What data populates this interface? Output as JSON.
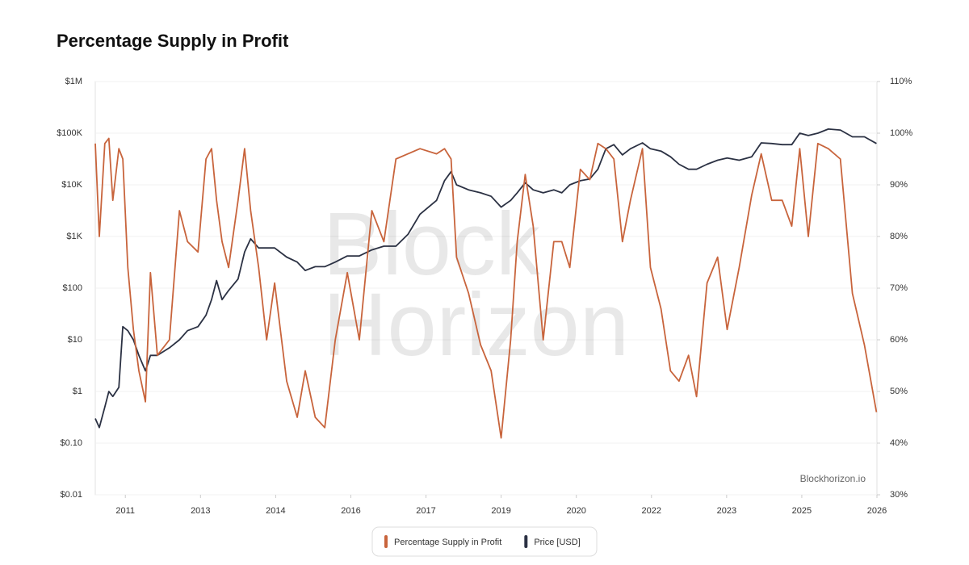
{
  "chart_data": {
    "type": "line",
    "title": "Percentage Supply in Profit",
    "watermark": [
      "Block",
      "Horizon"
    ],
    "credit": "Blockhorizon.io",
    "x": [
      2010.4,
      2010.48,
      2010.59,
      2010.67,
      2010.75,
      2010.87,
      2010.95,
      2011.05,
      2011.16,
      2011.27,
      2011.4,
      2011.5,
      2011.64,
      2011.88,
      2012.08,
      2012.24,
      2012.45,
      2012.61,
      2012.72,
      2012.82,
      2012.93,
      2013.06,
      2013.25,
      2013.38,
      2013.5,
      2013.66,
      2013.82,
      2013.98,
      2014.22,
      2014.43,
      2014.59,
      2014.79,
      2014.98,
      2015.19,
      2015.43,
      2015.67,
      2015.92,
      2016.16,
      2016.4,
      2016.64,
      2016.88,
      2017.21,
      2017.37,
      2017.5,
      2017.61,
      2017.85,
      2018.09,
      2018.3,
      2018.5,
      2018.69,
      2018.82,
      2018.98,
      2019.14,
      2019.34,
      2019.55,
      2019.71,
      2019.87,
      2020.08,
      2020.27,
      2020.43,
      2020.59,
      2020.75,
      2020.92,
      2021.08,
      2021.32,
      2021.48,
      2021.69,
      2021.88,
      2022.05,
      2022.24,
      2022.4,
      2022.61,
      2022.82,
      2023.01,
      2023.25,
      2023.5,
      2023.69,
      2023.9,
      2024.11,
      2024.3,
      2024.46,
      2024.63,
      2024.82,
      2025.03,
      2025.27,
      2025.51,
      2025.75,
      2025.99
    ],
    "series": [
      {
        "name": "Percentage Supply in Profit",
        "color": "#c8643c",
        "axis": "y2",
        "values": [
          98,
          80,
          98,
          99,
          87,
          97,
          95,
          74,
          62,
          54,
          48,
          73,
          57,
          60,
          85,
          79,
          77,
          95,
          97,
          87,
          79,
          74,
          87,
          97,
          85,
          74,
          60,
          71,
          52,
          45,
          54,
          45,
          43,
          60,
          73,
          60,
          85,
          79,
          95,
          96,
          97,
          96,
          97,
          95,
          76,
          69,
          59,
          54,
          41,
          60,
          79,
          92,
          82,
          60,
          79,
          79,
          74,
          93,
          91,
          98,
          97,
          95,
          79,
          87,
          97,
          74,
          66,
          54,
          52,
          57,
          49,
          71,
          76,
          62,
          74,
          88,
          96,
          87,
          87,
          82,
          97,
          80,
          98,
          97,
          95,
          69,
          59,
          46
        ]
      },
      {
        "name": "Price [USD]",
        "color": "#2b3143",
        "axis": "y",
        "values": [
          0.3,
          0.2,
          0.5,
          1,
          0.8,
          1.2,
          18,
          15,
          10,
          5,
          2.5,
          5,
          5,
          7,
          10,
          15,
          18,
          30,
          60,
          140,
          60,
          90,
          150,
          500,
          900,
          600,
          600,
          600,
          400,
          320,
          220,
          260,
          260,
          320,
          420,
          420,
          550,
          650,
          650,
          1100,
          2700,
          5000,
          12000,
          18000,
          10000,
          8000,
          7000,
          6000,
          3700,
          5000,
          7000,
          11000,
          8000,
          7000,
          8000,
          7000,
          10000,
          12000,
          13000,
          20000,
          50000,
          60000,
          38000,
          50000,
          65000,
          50000,
          45000,
          35000,
          25000,
          20000,
          20000,
          25000,
          30000,
          33000,
          30000,
          35000,
          65000,
          63000,
          60000,
          60000,
          100000,
          90000,
          100000,
          120000,
          115000,
          85000,
          85000,
          63000
        ]
      }
    ],
    "xlim": [
      2010.4,
      2026
    ],
    "xticks": [
      2011,
      {
        "value": 2012.5,
        "label": "2013"
      },
      2014,
      {
        "value": 2015.5,
        "label": "2016"
      },
      2017,
      {
        "value": 2018.5,
        "label": "2019"
      },
      2020,
      {
        "value": 2021.5,
        "label": "2022"
      },
      2023,
      {
        "value": 2024.5,
        "label": "2025"
      },
      2026
    ],
    "ylim": [
      0.01,
      1000000
    ],
    "log_y": true,
    "yticks": [
      {
        "value": 0.01,
        "label": "$0.01"
      },
      {
        "value": 0.1,
        "label": "$0.10"
      },
      {
        "value": 1,
        "label": "$1"
      },
      {
        "value": 10,
        "label": "$10"
      },
      {
        "value": 100,
        "label": "$100"
      },
      {
        "value": 1000,
        "label": "$1K"
      },
      {
        "value": 10000,
        "label": "$10K"
      },
      {
        "value": 100000,
        "label": "$100K"
      },
      {
        "value": 1000000,
        "label": "$1M"
      }
    ],
    "y2lim": [
      30,
      110
    ],
    "y2ticks": [
      {
        "value": 30,
        "label": "30%"
      },
      {
        "value": 40,
        "label": "40%"
      },
      {
        "value": 50,
        "label": "50%"
      },
      {
        "value": 60,
        "label": "60%"
      },
      {
        "value": 70,
        "label": "70%"
      },
      {
        "value": 80,
        "label": "80%"
      },
      {
        "value": 90,
        "label": "90%"
      },
      {
        "value": 100,
        "label": "100%"
      },
      {
        "value": 110,
        "label": "110%"
      }
    ],
    "grid": true,
    "legend": "bottom"
  }
}
